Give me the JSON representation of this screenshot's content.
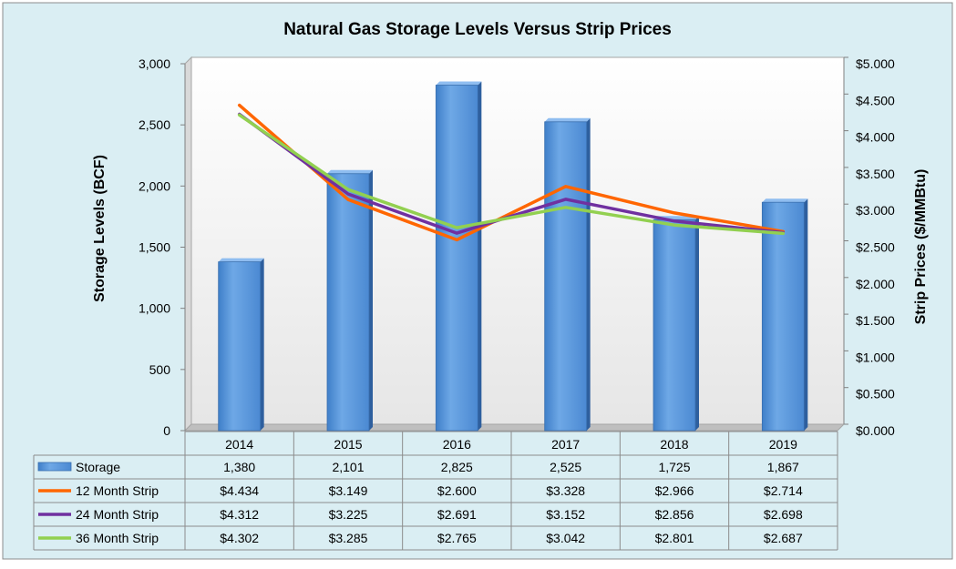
{
  "chart_data": {
    "type": "bar",
    "title": "Natural Gas Storage Levels Versus Strip Prices",
    "ylabel": "Storage Levels (BCF)",
    "y2label": "Strip Prices ($/MMBtu)",
    "ylim": [
      0,
      3000
    ],
    "y2lim": [
      0,
      5.0
    ],
    "yticks": [
      "0",
      "500",
      "1,000",
      "1,500",
      "2,000",
      "2,500",
      "3,000"
    ],
    "y2ticks": [
      "$0.000",
      "$0.500",
      "$1.000",
      "$1.500",
      "$2.000",
      "$2.500",
      "$3.000",
      "$3.500",
      "$4.000",
      "$4.500",
      "$5.000"
    ],
    "categories": [
      "2014",
      "2015",
      "2016",
      "2017",
      "2018",
      "2019"
    ],
    "grid": false,
    "legend": "data-table",
    "series": [
      {
        "name": "Storage",
        "type": "bar",
        "axis": "left",
        "color": "#5b9bd5",
        "values": [
          1380,
          2101,
          2825,
          2525,
          1725,
          1867
        ],
        "labels": [
          "1,380",
          "2,101",
          "2,825",
          "2,525",
          "1,725",
          "1,867"
        ]
      },
      {
        "name": "12 Month Strip",
        "type": "line",
        "axis": "right",
        "color": "#ff6600",
        "values": [
          4.434,
          3.149,
          2.6,
          3.328,
          2.966,
          2.714
        ],
        "labels": [
          "$4.434",
          "$3.149",
          "$2.600",
          "$3.328",
          "$2.966",
          "$2.714"
        ]
      },
      {
        "name": "24 Month Strip",
        "type": "line",
        "axis": "right",
        "color": "#7030a0",
        "values": [
          4.312,
          3.225,
          2.691,
          3.152,
          2.856,
          2.698
        ],
        "labels": [
          "$4.312",
          "$3.225",
          "$2.691",
          "$3.152",
          "$2.856",
          "$2.698"
        ]
      },
      {
        "name": "36 Month Strip",
        "type": "line",
        "axis": "right",
        "color": "#92d050",
        "values": [
          4.302,
          3.285,
          2.765,
          3.042,
          2.801,
          2.687
        ],
        "labels": [
          "$4.302",
          "$3.285",
          "$2.765",
          "$3.042",
          "$2.801",
          "$2.687"
        ]
      }
    ]
  },
  "colors": {
    "panel_background": "#daeef3",
    "plot_background": "#ffffff",
    "border": "#8c8c8c"
  }
}
